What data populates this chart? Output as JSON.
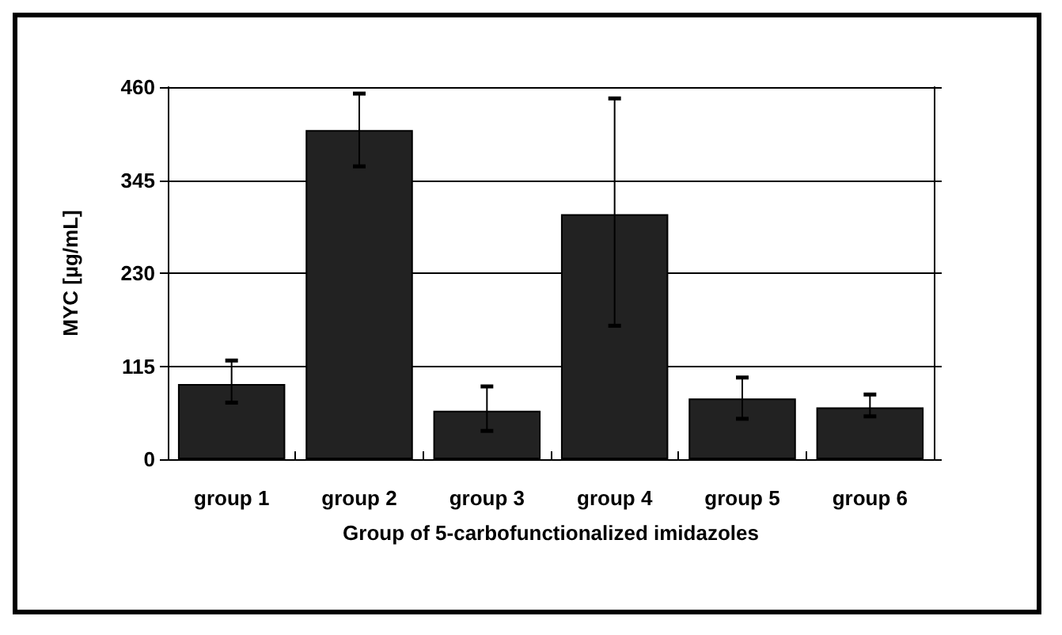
{
  "chart_data": {
    "type": "bar",
    "xlabel": "Group of 5-carbofunctionalized imidazoles",
    "ylabel": "MYC [µg/mL]",
    "categories": [
      "group 1",
      "group 2",
      "group 3",
      "group 4",
      "group 5",
      "group 6"
    ],
    "values": [
      93,
      407,
      60,
      303,
      75,
      64
    ],
    "errors": [
      [
        70,
        122
      ],
      [
        362,
        452
      ],
      [
        35,
        90
      ],
      [
        165,
        446
      ],
      [
        50,
        101
      ],
      [
        53,
        80
      ]
    ],
    "color": "#222222",
    "ylim": [
      0,
      460
    ],
    "yticks": [
      0,
      115,
      230,
      345,
      460
    ],
    "grid": "y"
  }
}
